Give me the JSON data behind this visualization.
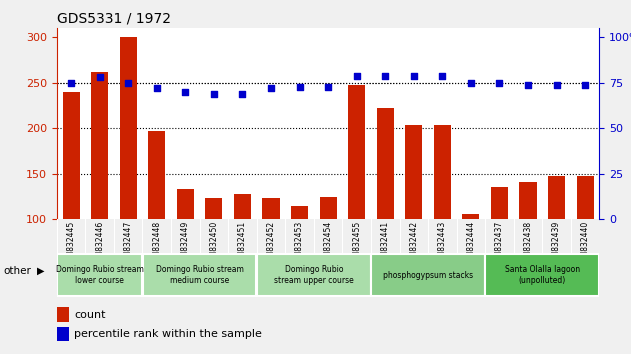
{
  "title": "GDS5331 / 1972",
  "samples": [
    "GSM832445",
    "GSM832446",
    "GSM832447",
    "GSM832448",
    "GSM832449",
    "GSM832450",
    "GSM832451",
    "GSM832452",
    "GSM832453",
    "GSM832454",
    "GSM832455",
    "GSM832441",
    "GSM832442",
    "GSM832443",
    "GSM832444",
    "GSM832437",
    "GSM832438",
    "GSM832439",
    "GSM832440"
  ],
  "counts": [
    240,
    262,
    300,
    197,
    133,
    124,
    128,
    124,
    115,
    125,
    248,
    222,
    204,
    204,
    106,
    136,
    141,
    148,
    148
  ],
  "percentiles": [
    75,
    78,
    75,
    72,
    70,
    69,
    69,
    72,
    73,
    73,
    79,
    79,
    79,
    79,
    75,
    75,
    74,
    74,
    74
  ],
  "bar_color": "#cc2200",
  "dot_color": "#0000cc",
  "ylim_left": [
    100,
    310
  ],
  "ylim_right": [
    0,
    105
  ],
  "yticks_left": [
    100,
    150,
    200,
    250,
    300
  ],
  "yticks_right": [
    0,
    25,
    50,
    75,
    100
  ],
  "grid_lines": [
    150,
    200,
    250
  ],
  "groups": [
    {
      "label": "Domingo Rubio stream\nlower course",
      "start": 0,
      "end": 3,
      "color": "#aaddaa"
    },
    {
      "label": "Domingo Rubio stream\nmedium course",
      "start": 3,
      "end": 7,
      "color": "#aaddaa"
    },
    {
      "label": "Domingo Rubio\nstream upper course",
      "start": 7,
      "end": 11,
      "color": "#aaddaa"
    },
    {
      "label": "phosphogypsum stacks",
      "start": 11,
      "end": 15,
      "color": "#88cc88"
    },
    {
      "label": "Santa Olalla lagoon\n(unpolluted)",
      "start": 15,
      "end": 19,
      "color": "#55bb55"
    }
  ],
  "legend_count_label": "count",
  "legend_pct_label": "percentile rank within the sample",
  "background_color": "#f0f0f0",
  "plot_bg": "#ffffff",
  "sample_bg": "#cccccc"
}
